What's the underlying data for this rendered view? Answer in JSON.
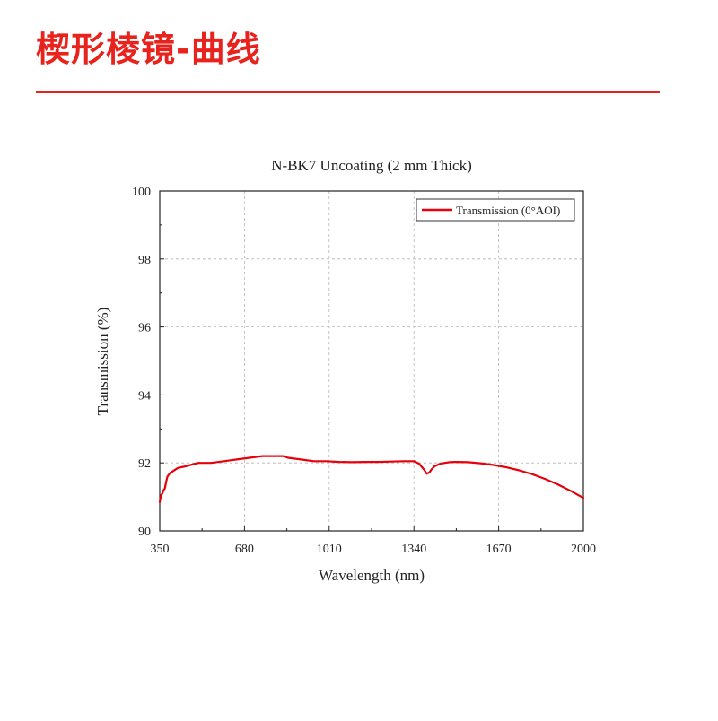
{
  "page": {
    "title": "楔形棱镜-曲线",
    "accent_color": "#e8221d"
  },
  "chart_data": {
    "type": "line",
    "title": "N-BK7 Uncoating (2 mm  Thick)",
    "xlabel": "Wavelength (nm)",
    "ylabel": "Transmission (%)",
    "xlim": [
      350,
      2000
    ],
    "ylim": [
      90,
      100
    ],
    "x_ticks": [
      350,
      680,
      1010,
      1340,
      1670,
      2000
    ],
    "x_tick_labels": [
      "350",
      "680",
      "1010",
      "1340",
      "1670",
      "2000"
    ],
    "y_ticks": [
      90,
      92,
      94,
      96,
      98,
      100
    ],
    "y_tick_labels": [
      "90",
      "92",
      "94",
      "96",
      "98",
      "100"
    ],
    "grid": true,
    "legend_position": "top-right",
    "series": [
      {
        "name": "Transmission (0°AOI)",
        "color": "#e8000b",
        "x": [
          350,
          355,
          360,
          365,
          370,
          375,
          380,
          390,
          400,
          420,
          450,
          500,
          550,
          600,
          650,
          700,
          750,
          800,
          830,
          850,
          900,
          950,
          1000,
          1050,
          1100,
          1150,
          1200,
          1250,
          1300,
          1340,
          1360,
          1380,
          1390,
          1400,
          1410,
          1420,
          1440,
          1460,
          1480,
          1500,
          1550,
          1600,
          1650,
          1700,
          1750,
          1800,
          1850,
          1900,
          1950,
          2000
        ],
        "y": [
          90.85,
          91.05,
          91.1,
          91.2,
          91.25,
          91.45,
          91.6,
          91.7,
          91.75,
          91.85,
          91.9,
          92.0,
          92.0,
          92.05,
          92.1,
          92.15,
          92.2,
          92.2,
          92.2,
          92.15,
          92.1,
          92.05,
          92.05,
          92.03,
          92.02,
          92.03,
          92.03,
          92.04,
          92.05,
          92.05,
          91.98,
          91.8,
          91.68,
          91.72,
          91.82,
          91.9,
          91.97,
          92.0,
          92.02,
          92.03,
          92.02,
          91.99,
          91.94,
          91.87,
          91.78,
          91.67,
          91.53,
          91.37,
          91.18,
          90.97
        ]
      }
    ]
  }
}
